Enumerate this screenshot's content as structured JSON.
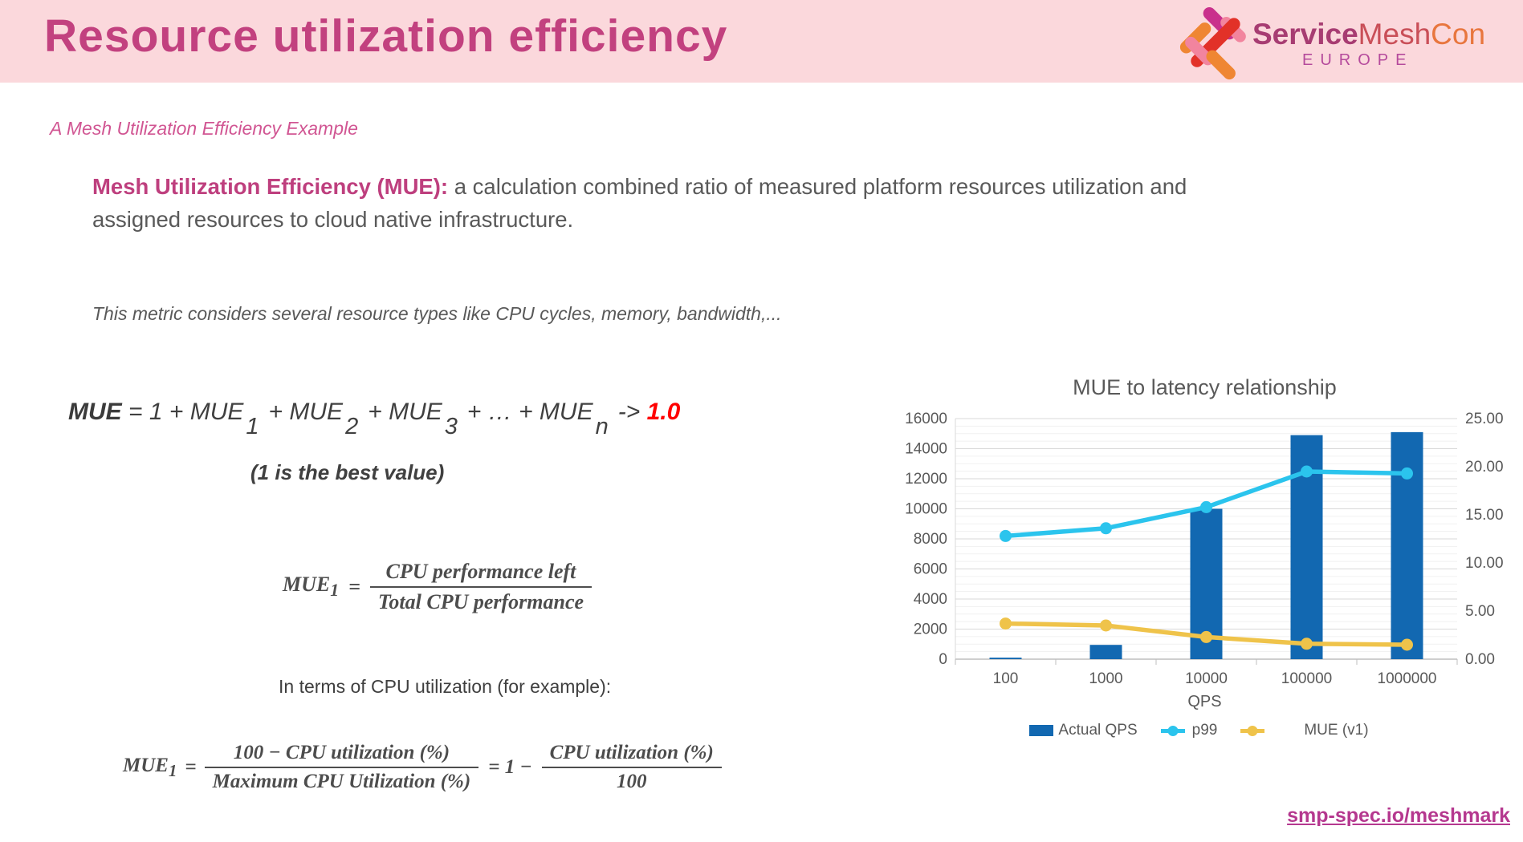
{
  "header": {
    "title": "Resource utilization efficiency",
    "logo": {
      "service": "Service",
      "mesh": "Mesh",
      "con": "Con",
      "europe": "EUROPE"
    }
  },
  "subtitle": "A Mesh Utilization Efficiency Example",
  "paragraph": {
    "lead": "Mesh Utilization Efficiency (MUE):",
    "rest": " a calculation combined ratio of measured platform resources utilization and assigned resources to cloud native infrastructure."
  },
  "note": "This metric considers several resource types like CPU cycles, memory, bandwidth,...",
  "formula_sum": {
    "lhs": "MUE",
    "t1": " = 1 + MUE",
    "s1": "1",
    "t2": "+ MUE",
    "s2": "2",
    "t3": "+ MUE",
    "s3": "3",
    "t4": "+ … + MUE",
    "s4": "n",
    "arrow": "-> ",
    "target": "1.0"
  },
  "best_value_note": "(1 is the best value)",
  "formula_mue1": {
    "lhs": "MUE",
    "sub": "1",
    "eq": "=",
    "num": "CPU performance left",
    "den": "Total CPU performance"
  },
  "cpu_note": "In terms of CPU utilization (for example):",
  "formula_cpu": {
    "lhs": "MUE",
    "sub": "1",
    "eq": "=",
    "num1": "100 − CPU utilization (%)",
    "den1": "Maximum CPU Utilization (%)",
    "eq2": "= 1 −",
    "num2": "CPU utilization (%)",
    "den2": "100"
  },
  "chart_data": {
    "type": "bar",
    "title": "MUE to latency relationship",
    "categories": [
      "100",
      "1000",
      "10000",
      "100000",
      "1000000"
    ],
    "xlabel": "QPS",
    "grid": true,
    "legend_position": "bottom",
    "left_axis": {
      "min": 0,
      "max": 16000,
      "step": 2000,
      "minor_step": 500,
      "tick_labels": [
        "0",
        "2000",
        "4000",
        "6000",
        "8000",
        "10000",
        "12000",
        "14000",
        "16000"
      ]
    },
    "right_axis": {
      "min": 0,
      "max": 25,
      "step": 5,
      "tick_labels": [
        "0.00",
        "5.00",
        "10.00",
        "15.00",
        "20.00",
        "25.00"
      ]
    },
    "series": [
      {
        "name": "Actual QPS",
        "type": "bar",
        "axis": "left",
        "color": "#1268B1",
        "values": [
          100,
          950,
          10000,
          14900,
          15100
        ]
      },
      {
        "name": "p99",
        "type": "line",
        "axis": "right",
        "color": "#2BC4ED",
        "values": [
          12.8,
          13.6,
          15.8,
          19.5,
          19.3
        ]
      },
      {
        "name": "MUE (v1)",
        "type": "line",
        "axis": "right",
        "color": "#EFC34A",
        "values": [
          3.7,
          3.5,
          2.3,
          1.6,
          1.5
        ]
      }
    ]
  },
  "footer_link": "smp-spec.io/meshmark",
  "colors": {
    "header_bg": "#FBD8DC",
    "title": "#C2417F",
    "accent_pink": "#BE3F7E",
    "body_gray": "#595959",
    "red_highlight": "#FF0000",
    "link": "#B5388F",
    "bar_blue": "#1268B1",
    "line_cyan": "#2BC4ED",
    "line_yellow": "#EFC34A"
  }
}
